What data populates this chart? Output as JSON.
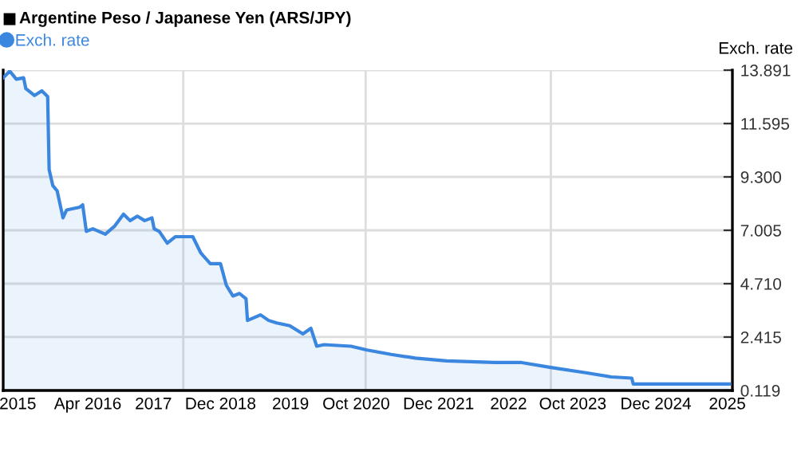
{
  "chart_data": {
    "type": "area",
    "title": "Argentine Peso / Japanese Yen (ARS/JPY)",
    "ylabel": "Exch. rate",
    "x": [
      2015.0,
      2015.09,
      2015.18,
      2015.28,
      2015.31,
      2015.43,
      2015.53,
      2015.61,
      2015.63,
      2015.68,
      2015.74,
      2015.82,
      2015.87,
      2016.05,
      2016.09,
      2016.14,
      2016.23,
      2016.4,
      2016.53,
      2016.65,
      2016.74,
      2016.84,
      2016.94,
      2017.04,
      2017.07,
      2017.14,
      2017.25,
      2017.36,
      2017.6,
      2017.71,
      2017.84,
      2017.98,
      2018.06,
      2018.15,
      2018.24,
      2018.33,
      2018.35,
      2018.53,
      2018.64,
      2018.75,
      2018.93,
      2019.11,
      2019.22,
      2019.3,
      2019.4,
      2019.77,
      2019.99,
      2020.32,
      2020.65,
      2021.08,
      2021.74,
      2022.11,
      2022.51,
      2022.99,
      2023.34,
      2023.62,
      2023.64,
      2024.96
    ],
    "series": [
      {
        "name": "Exch. rate",
        "color": "#3b87e0",
        "values": [
          13.56,
          13.85,
          13.5,
          13.56,
          13.1,
          12.8,
          13.0,
          12.75,
          9.62,
          8.93,
          8.7,
          7.54,
          7.88,
          8.0,
          8.1,
          6.96,
          7.07,
          6.84,
          7.19,
          7.7,
          7.42,
          7.61,
          7.42,
          7.54,
          7.07,
          6.96,
          6.45,
          6.73,
          6.73,
          6.03,
          5.57,
          5.57,
          4.64,
          4.18,
          4.29,
          4.06,
          3.13,
          3.37,
          3.13,
          3.02,
          2.9,
          2.55,
          2.79,
          2.02,
          2.09,
          2.02,
          1.86,
          1.67,
          1.51,
          1.39,
          1.32,
          1.32,
          1.11,
          0.88,
          0.7,
          0.65,
          0.4,
          0.4
        ]
      }
    ],
    "xlim": [
      2015,
      2025
    ],
    "xticks": [
      {
        "value": 2015.2,
        "label": "2015"
      },
      {
        "value": 2016.16,
        "label": "Apr 2016"
      },
      {
        "value": 2017.06,
        "label": "2017"
      },
      {
        "value": 2017.98,
        "label": "Dec 2018"
      },
      {
        "value": 2018.94,
        "label": "2019"
      },
      {
        "value": 2019.84,
        "label": "Oct 2020"
      },
      {
        "value": 2020.97,
        "label": "Dec 2021"
      },
      {
        "value": 2021.93,
        "label": "2022"
      },
      {
        "value": 2022.81,
        "label": "Oct 2023"
      },
      {
        "value": 2023.95,
        "label": "Dec 2024"
      },
      {
        "value": 2024.93,
        "label": "2025"
      }
    ],
    "ylim": [
      0.119,
      13.891
    ],
    "yticks": [
      {
        "value": 0.119,
        "label": "0.119"
      },
      {
        "value": 2.415,
        "label": "2.415"
      },
      {
        "value": 4.71,
        "label": "4.710"
      },
      {
        "value": 7.005,
        "label": "7.005"
      },
      {
        "value": 9.3,
        "label": "9.300"
      },
      {
        "value": 11.595,
        "label": "11.595"
      },
      {
        "value": 13.891,
        "label": "13.891"
      }
    ],
    "ref_lines": [
      {
        "axis": "x",
        "value": 2017.47,
        "color": "#dddddd"
      },
      {
        "axis": "x",
        "value": 2019.97,
        "color": "#dddddd"
      },
      {
        "axis": "x",
        "value": 2022.51,
        "color": "#dddddd"
      }
    ],
    "grid": "y",
    "legend": "top left"
  }
}
